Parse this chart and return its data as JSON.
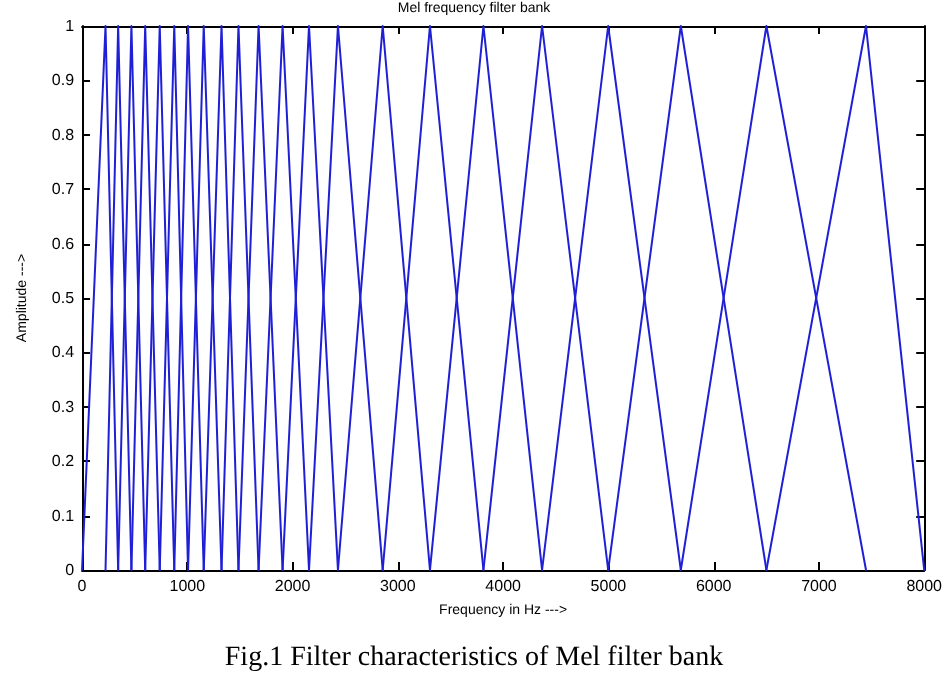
{
  "chart_data": {
    "type": "line",
    "title": "Mel frequency filter bank",
    "xlabel": "Frequency in Hz --->",
    "ylabel": "Amplitude --->",
    "annotations": [
      "Fig.1 Filter characteristics of Mel filter bank"
    ],
    "xlim": [
      0,
      8000
    ],
    "xticks": [
      0,
      1000,
      2000,
      3000,
      4000,
      5000,
      6000,
      7000,
      8000
    ],
    "ylim": [
      0,
      1
    ],
    "yticks": [
      0,
      0.1,
      0.2,
      0.3,
      0.4,
      0.5,
      0.6,
      0.7,
      0.8,
      0.9,
      1
    ],
    "grid": false,
    "marker": "none",
    "line_style": "solid",
    "series": [
      {
        "color": "#1f1fd6",
        "x": [
          0,
          223,
          343
        ],
        "values": [
          0,
          1,
          0
        ]
      },
      {
        "color": "#1f1fd6",
        "x": [
          223,
          343,
          469
        ],
        "values": [
          0,
          1,
          0
        ]
      },
      {
        "color": "#1f1fd6",
        "x": [
          343,
          469,
          600
        ],
        "values": [
          0,
          1,
          0
        ]
      },
      {
        "color": "#1f1fd6",
        "x": [
          469,
          600,
          738
        ],
        "values": [
          0,
          1,
          0
        ]
      },
      {
        "color": "#1f1fd6",
        "x": [
          600,
          738,
          876
        ],
        "values": [
          0,
          1,
          0
        ]
      },
      {
        "color": "#1f1fd6",
        "x": [
          738,
          876,
          1007
        ],
        "values": [
          0,
          1,
          0
        ]
      },
      {
        "color": "#1f1fd6",
        "x": [
          876,
          1007,
          1156
        ],
        "values": [
          0,
          1,
          0
        ]
      },
      {
        "color": "#1f1fd6",
        "x": [
          1007,
          1156,
          1325
        ],
        "values": [
          0,
          1,
          0
        ]
      },
      {
        "color": "#1f1fd6",
        "x": [
          1156,
          1325,
          1486
        ],
        "values": [
          0,
          1,
          0
        ]
      },
      {
        "color": "#1f1fd6",
        "x": [
          1325,
          1486,
          1677
        ],
        "values": [
          0,
          1,
          0
        ]
      },
      {
        "color": "#1f1fd6",
        "x": [
          1486,
          1677,
          1905
        ],
        "values": [
          0,
          1,
          0
        ]
      },
      {
        "color": "#1f1fd6",
        "x": [
          1677,
          1905,
          2156
        ],
        "values": [
          0,
          1,
          0
        ]
      },
      {
        "color": "#1f1fd6",
        "x": [
          1905,
          2156,
          2431
        ],
        "values": [
          0,
          1,
          0
        ]
      },
      {
        "color": "#1f1fd6",
        "x": [
          2156,
          2431,
          2856
        ],
        "values": [
          0,
          1,
          0
        ]
      },
      {
        "color": "#1f1fd6",
        "x": [
          2431,
          2856,
          3305
        ],
        "values": [
          0,
          1,
          0
        ]
      },
      {
        "color": "#1f1fd6",
        "x": [
          2856,
          3305,
          3813
        ],
        "values": [
          0,
          1,
          0
        ]
      },
      {
        "color": "#1f1fd6",
        "x": [
          3305,
          3813,
          4370
        ],
        "values": [
          0,
          1,
          0
        ]
      },
      {
        "color": "#1f1fd6",
        "x": [
          3813,
          4370,
          4998
        ],
        "values": [
          0,
          1,
          0
        ]
      },
      {
        "color": "#1f1fd6",
        "x": [
          4370,
          4998,
          5688
        ],
        "values": [
          0,
          1,
          0
        ]
      },
      {
        "color": "#1f1fd6",
        "x": [
          4998,
          5688,
          6501
        ],
        "values": [
          0,
          1,
          0
        ]
      },
      {
        "color": "#1f1fd6",
        "x": [
          5688,
          6501,
          7447
        ],
        "values": [
          0,
          1,
          0
        ]
      },
      {
        "color": "#1f1fd6",
        "x": [
          6501,
          7447,
          8000
        ],
        "values": [
          0,
          1,
          0
        ]
      }
    ]
  }
}
